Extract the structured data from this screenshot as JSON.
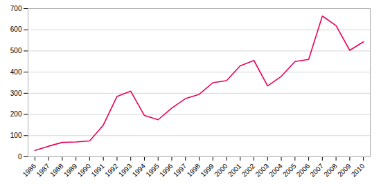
{
  "chart_data": {
    "type": "line",
    "x": [
      1986,
      1987,
      1988,
      1989,
      1990,
      1991,
      1992,
      1993,
      1994,
      1995,
      1996,
      1997,
      1998,
      1999,
      2000,
      2001,
      2002,
      2003,
      2004,
      2005,
      2006,
      2007,
      2008,
      2009,
      2010
    ],
    "values": [
      30,
      50,
      68,
      70,
      75,
      150,
      285,
      310,
      195,
      175,
      230,
      275,
      295,
      350,
      360,
      430,
      455,
      335,
      380,
      450,
      460,
      665,
      620,
      503,
      543
    ],
    "color": "#e8005a",
    "xlim": [
      1985.5,
      2010.5
    ],
    "xticks": [
      1986,
      1987,
      1988,
      1989,
      1990,
      1991,
      1992,
      1993,
      1994,
      1995,
      1996,
      1997,
      1998,
      1999,
      2000,
      2001,
      2002,
      2003,
      2004,
      2005,
      2006,
      2007,
      2008,
      2009,
      2010
    ],
    "ylim": [
      0,
      700
    ],
    "yticks": [
      0,
      100,
      200,
      300,
      400,
      500,
      600,
      700
    ],
    "grid": "y"
  }
}
